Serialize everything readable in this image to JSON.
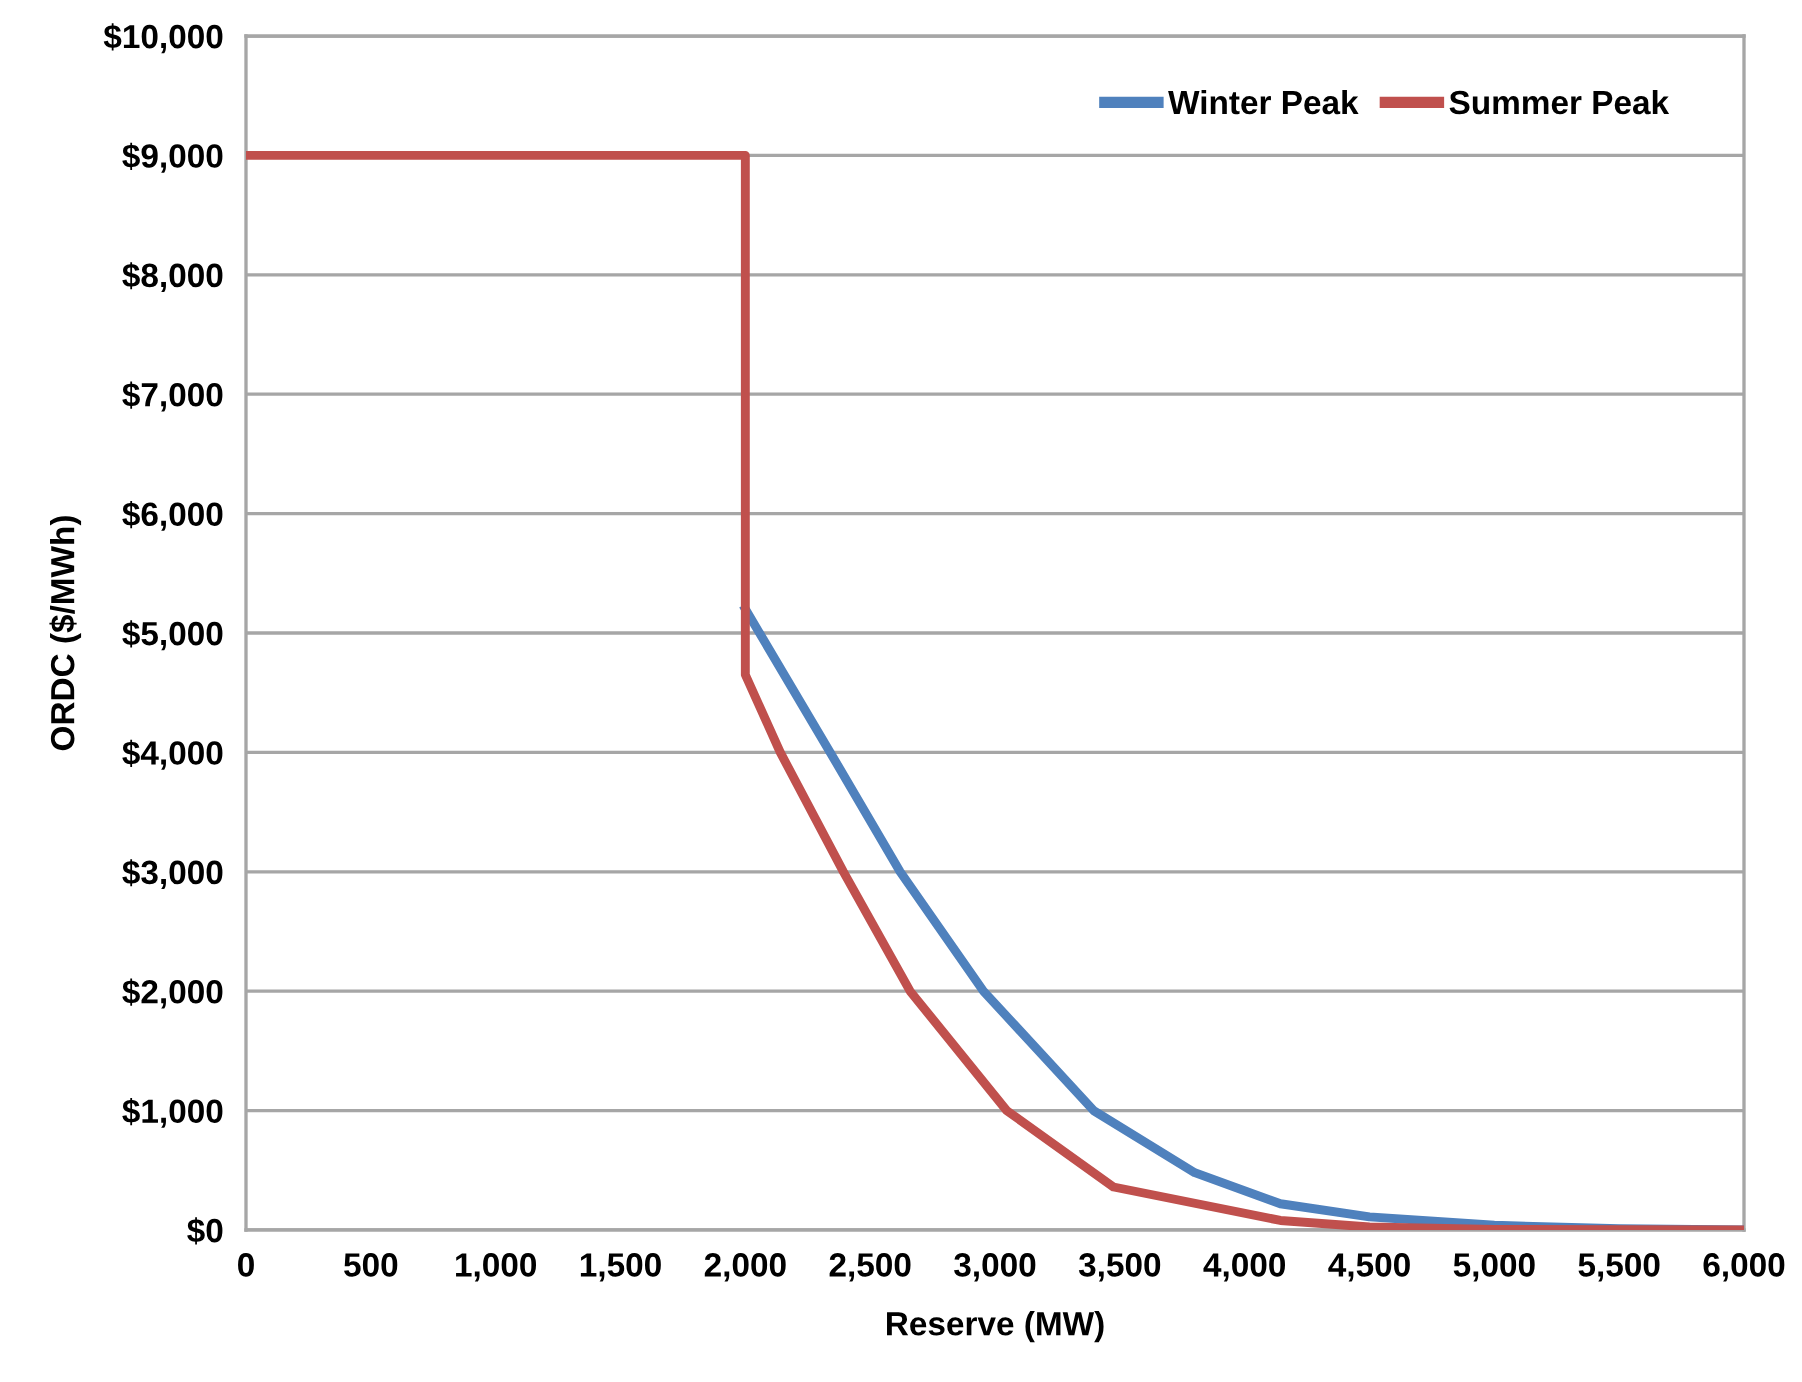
{
  "chart_data": {
    "type": "line",
    "xlabel": "Reserve (MW)",
    "ylabel": "ORDC ($/MWh)",
    "xlim": [
      0,
      6000
    ],
    "ylim": [
      0,
      10000
    ],
    "xticks": [
      0,
      {
        "value": 500,
        "label": "500"
      },
      {
        "value": 1000,
        "label": "1,000"
      },
      {
        "value": 1500,
        "label": "1,500"
      },
      {
        "value": 2000,
        "label": "2,000"
      },
      {
        "value": 2500,
        "label": "2,500"
      },
      {
        "value": 3000,
        "label": "3,000"
      },
      {
        "value": 3500,
        "label": "3,500"
      },
      {
        "value": 4000,
        "label": "4,000"
      },
      {
        "value": 4500,
        "label": "4,500"
      },
      {
        "value": 5000,
        "label": "5,000"
      },
      {
        "value": 5500,
        "label": "5,500"
      },
      {
        "value": 6000,
        "label": "6,000"
      }
    ],
    "yticks": [
      {
        "value": 0,
        "label": "$0"
      },
      {
        "value": 1000,
        "label": "$1,000"
      },
      {
        "value": 2000,
        "label": "$2,000"
      },
      {
        "value": 3000,
        "label": "$3,000"
      },
      {
        "value": 4000,
        "label": "$4,000"
      },
      {
        "value": 5000,
        "label": "$5,000"
      },
      {
        "value": 6000,
        "label": "$6,000"
      },
      {
        "value": 7000,
        "label": "$7,000"
      },
      {
        "value": 8000,
        "label": "$8,000"
      },
      {
        "value": 9000,
        "label": "$9,000"
      },
      {
        "value": 10000,
        "label": "$10,000"
      }
    ],
    "grid": "y",
    "legend": "top right",
    "marker": "none",
    "line_style": "solid",
    "series": [
      {
        "name": "Winter Peak",
        "color": "#4f81bd",
        "x": [
          2000,
          2340,
          2620,
          2954,
          3395,
          3800,
          4143,
          4500,
          5000,
          5500,
          6000
        ],
        "values": [
          5200,
          4000,
          3000,
          2000,
          1000,
          480,
          220,
          110,
          40,
          10,
          0
        ]
      },
      {
        "name": "Summer Peak",
        "color": "#c0504d",
        "x": [
          0,
          2000,
          2000,
          2140,
          2393,
          2660,
          3047,
          3475,
          4143,
          4500,
          5000,
          6000
        ],
        "values": [
          9000,
          9000,
          4650,
          4000,
          3000,
          2000,
          1000,
          360,
          80,
          25,
          5,
          0
        ]
      }
    ]
  }
}
